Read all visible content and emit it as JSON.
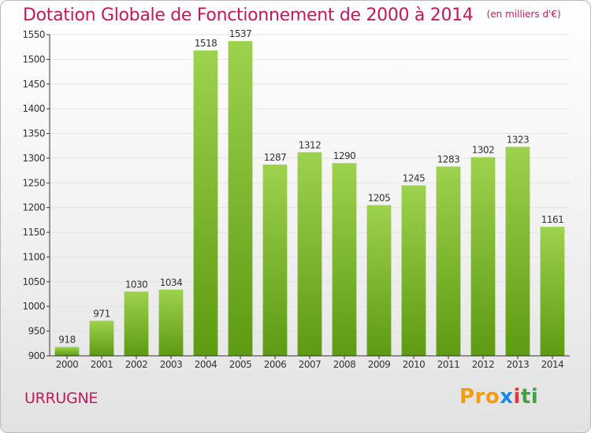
{
  "title": "Dotation Globale de Fonctionnement de 2000 à 2014",
  "unit_note": "(en milliers d'€)",
  "municipality": "URRUGNE",
  "logo": {
    "part1": "Pro",
    "part2": "x",
    "part3": "i",
    "part4": "ti"
  },
  "colors": {
    "title": "#c2185b",
    "bar_light": "#9dd24e",
    "bar_dark": "#5e9a12",
    "grid": "#e3e3e3",
    "axis": "#333333"
  },
  "chart_data": {
    "type": "bar",
    "title": "Dotation Globale de Fonctionnement de 2000 à 2014",
    "subtitle": "(en milliers d'€)",
    "xlabel": "",
    "ylabel": "",
    "categories": [
      "2000",
      "2001",
      "2002",
      "2003",
      "2004",
      "2005",
      "2006",
      "2007",
      "2008",
      "2009",
      "2010",
      "2011",
      "2012",
      "2013",
      "2014"
    ],
    "values": [
      918,
      971,
      1030,
      1034,
      1518,
      1537,
      1287,
      1312,
      1290,
      1205,
      1245,
      1283,
      1302,
      1323,
      1161
    ],
    "ylim": [
      900,
      1550
    ],
    "yticks": [
      900,
      950,
      1000,
      1050,
      1100,
      1150,
      1200,
      1250,
      1300,
      1350,
      1400,
      1450,
      1500,
      1550
    ],
    "grid": true,
    "legend": "none",
    "data_labels": true
  }
}
